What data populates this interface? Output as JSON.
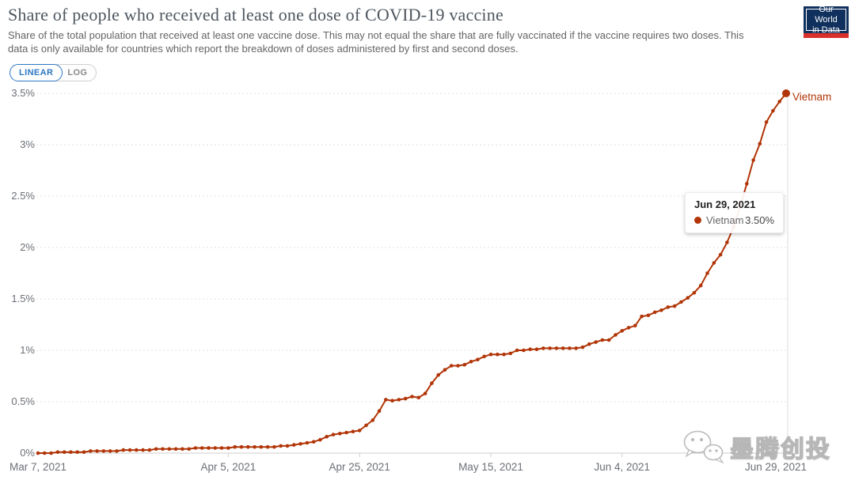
{
  "header": {
    "title": "Share of people who received at least one dose of COVID-19 vaccine",
    "subtitle": "Share of the total population that received at least one vaccine dose. This may not equal the share that are fully vaccinated if the vaccine requires two doses. This data is only available for countries which report the breakdown of doses administered by first and second doses.",
    "logo": {
      "line1": "Our World",
      "line2": "in Data",
      "bg": "#10315e",
      "accent": "#d8312b"
    }
  },
  "controls": {
    "linear_label": "LINEAR",
    "log_label": "LOG",
    "selected": "LINEAR",
    "accent_blue": "#2e77c2"
  },
  "chart_data": {
    "type": "line",
    "title": "Share of people who received at least one dose of COVID-19 vaccine",
    "ylim": [
      0,
      3.5
    ],
    "grid": true,
    "line_color": "#B13507",
    "axis_text_color": "#6b6f76",
    "y_ticks": [
      {
        "label": "0%",
        "value": 0
      },
      {
        "label": "0.5%",
        "value": 0.5
      },
      {
        "label": "1%",
        "value": 1
      },
      {
        "label": "1.5%",
        "value": 1.5
      },
      {
        "label": "2%",
        "value": 2
      },
      {
        "label": "2.5%",
        "value": 2.5
      },
      {
        "label": "3%",
        "value": 3
      },
      {
        "label": "3.5%",
        "value": 3.5
      }
    ],
    "x_ticks": [
      {
        "label": "Mar 7, 2021",
        "day": 0
      },
      {
        "label": "Apr 5, 2021",
        "day": 29
      },
      {
        "label": "Apr 25, 2021",
        "day": 49
      },
      {
        "label": "May 15, 2021",
        "day": 69
      },
      {
        "label": "Jun 4, 2021",
        "day": 89
      },
      {
        "label": "Jun 29, 2021",
        "day": 114
      }
    ],
    "series": [
      {
        "name": "Vietnam",
        "color": "#B13507",
        "start_date": "Mar 7, 2021",
        "end_date": "Jun 29, 2021",
        "values_unit": "% of population with at least one dose (daily)",
        "values": [
          0.0,
          0.0,
          0.0,
          0.01,
          0.01,
          0.01,
          0.01,
          0.01,
          0.02,
          0.02,
          0.02,
          0.02,
          0.02,
          0.03,
          0.03,
          0.03,
          0.03,
          0.03,
          0.04,
          0.04,
          0.04,
          0.04,
          0.04,
          0.04,
          0.05,
          0.05,
          0.05,
          0.05,
          0.05,
          0.05,
          0.06,
          0.06,
          0.06,
          0.06,
          0.06,
          0.06,
          0.06,
          0.07,
          0.07,
          0.08,
          0.09,
          0.1,
          0.11,
          0.13,
          0.16,
          0.18,
          0.19,
          0.2,
          0.21,
          0.22,
          0.27,
          0.32,
          0.41,
          0.52,
          0.51,
          0.52,
          0.53,
          0.55,
          0.54,
          0.58,
          0.68,
          0.76,
          0.81,
          0.85,
          0.85,
          0.86,
          0.89,
          0.91,
          0.94,
          0.96,
          0.96,
          0.96,
          0.97,
          1.0,
          1.0,
          1.01,
          1.01,
          1.02,
          1.02,
          1.02,
          1.02,
          1.02,
          1.02,
          1.03,
          1.06,
          1.08,
          1.1,
          1.1,
          1.15,
          1.19,
          1.22,
          1.24,
          1.33,
          1.34,
          1.37,
          1.39,
          1.42,
          1.43,
          1.47,
          1.51,
          1.56,
          1.63,
          1.75,
          1.85,
          1.93,
          2.05,
          2.2,
          2.4,
          2.62,
          2.85,
          3.01,
          3.22,
          3.33,
          3.42,
          3.5
        ]
      }
    ],
    "end_label": "Vietnam",
    "hover_day": 114
  },
  "tooltip": {
    "date": "Jun 29, 2021",
    "series": "Vietnam",
    "value": "3.50%"
  },
  "watermark": {
    "text": "墨腾创投"
  }
}
